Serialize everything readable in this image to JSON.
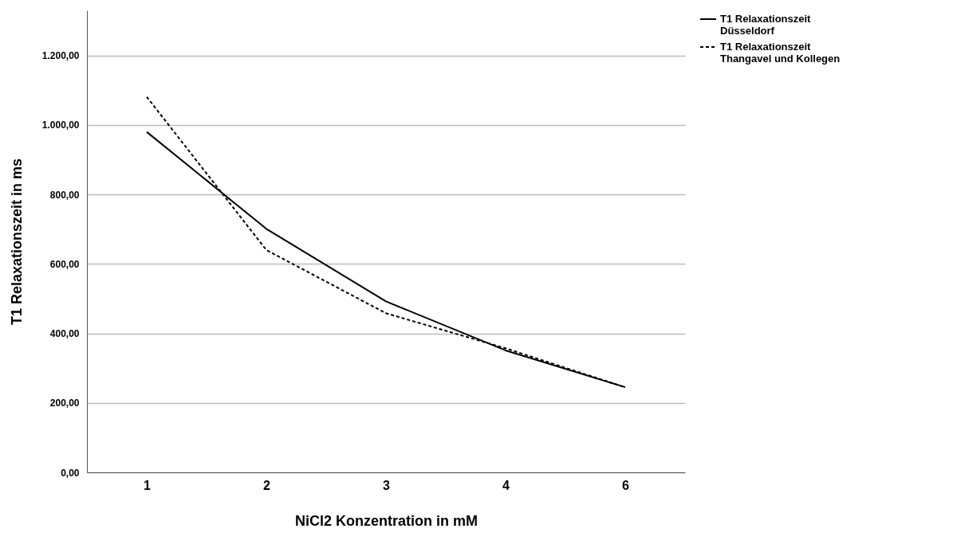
{
  "chart_data": {
    "type": "line",
    "xlabel": "NiCl2 Konzentration in mM",
    "ylabel": "T1 Relaxationszeit in ms",
    "categories": [
      "1",
      "2",
      "3",
      "4",
      "6"
    ],
    "series": [
      {
        "name": "T1 Relaxationszeit Düsseldorf",
        "color": "#000000",
        "line_style": "solid",
        "values": [
          980,
          701,
          492,
          351,
          245
        ]
      },
      {
        "name": "T1 Relaxationszeit Thangavel und Kollegen",
        "color": "#000000",
        "line_style": "dashed",
        "values": [
          1081,
          640,
          458,
          357,
          245
        ]
      }
    ],
    "ylim": [
      0,
      1330
    ],
    "yticks": [
      {
        "value": 0,
        "label": "0,00"
      },
      {
        "value": 200,
        "label": "200,00"
      },
      {
        "value": 400,
        "label": "400,00"
      },
      {
        "value": 600,
        "label": "600,00"
      },
      {
        "value": 800,
        "label": "800,00"
      },
      {
        "value": 1000,
        "label": "1.000,00"
      },
      {
        "value": 1200,
        "label": "1.200,00"
      }
    ],
    "grid": "y",
    "legend": "top right",
    "marker": "none"
  }
}
